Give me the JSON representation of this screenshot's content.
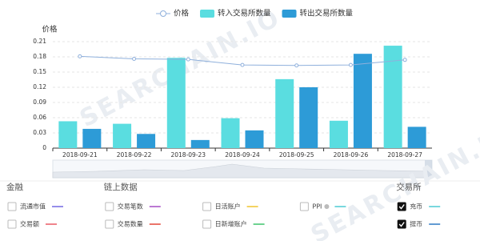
{
  "chart_data": {
    "type": "bar-line",
    "watermark": "SEARCHAIN.IO",
    "y_label": "价格",
    "categories": [
      "2018-09-21",
      "2018-09-22",
      "2018-09-23",
      "2018-09-24",
      "2018-09-25",
      "2018-09-26",
      "2018-09-27"
    ],
    "series": [
      {
        "name": "价格",
        "type": "line",
        "color": "#8fb0dc",
        "values": [
          0.181,
          0.176,
          0.175,
          0.164,
          0.163,
          0.164,
          0.174
        ]
      },
      {
        "name": "转入交易所数量",
        "type": "bar",
        "color": "#5adde0",
        "values": [
          0.053,
          0.048,
          0.178,
          0.059,
          0.136,
          0.054,
          0.202
        ]
      },
      {
        "name": "转出交易所数量",
        "type": "bar",
        "color": "#2d9bd7",
        "values": [
          0.038,
          0.028,
          0.016,
          0.035,
          0.12,
          0.186,
          0.042
        ]
      }
    ],
    "ylim": [
      0,
      0.21
    ],
    "yticks": [
      0,
      0.03,
      0.06,
      0.09,
      0.12,
      0.15,
      0.18,
      0.21
    ],
    "grid": true
  },
  "panel": {
    "groups": [
      {
        "title": "金融",
        "items": [
          {
            "label": "流通市值",
            "color": "#6a5de0",
            "checked": false
          },
          {
            "label": "交易额",
            "color": "#e8505b",
            "checked": false
          }
        ]
      },
      {
        "title": "链上数据",
        "items": [
          {
            "label": "交易笔数",
            "color": "#a040c0",
            "checked": false
          },
          {
            "label": "交易数量",
            "color": "#e03a2a",
            "checked": false
          },
          {
            "label": "日活账户",
            "color": "#f0c020",
            "checked": false
          },
          {
            "label": "日新增账户",
            "color": "#30c060",
            "checked": false
          },
          {
            "label": "PPI",
            "color": "#40c8d0",
            "checked": false
          }
        ]
      },
      {
        "title": "交易所",
        "items": [
          {
            "label": "充币",
            "color": "#40c8d0",
            "checked": true
          },
          {
            "label": "提币",
            "color": "#2070c0",
            "checked": true
          }
        ]
      }
    ]
  }
}
